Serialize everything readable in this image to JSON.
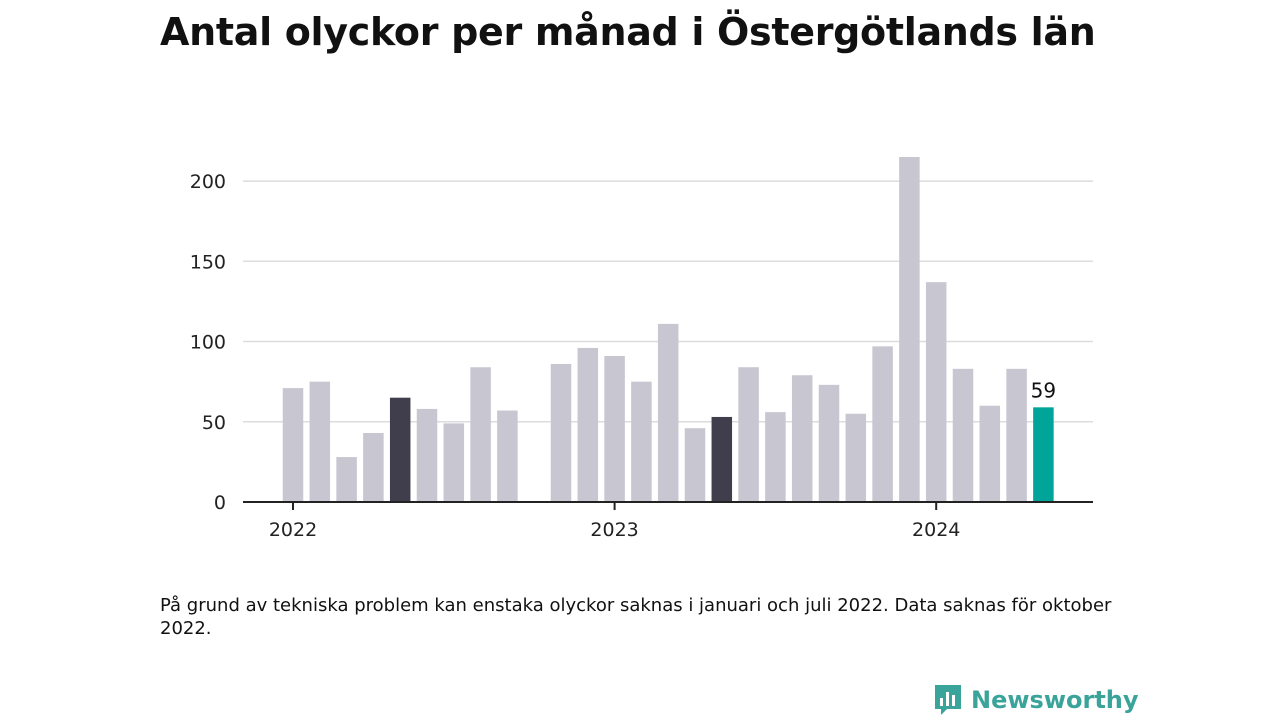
{
  "title": "Antal olyckor per månad i Östergötlands län",
  "note": "På grund av tekniska problem kan enstaka olyckor saknas i januari och juli 2022. Data saknas för oktober 2022.",
  "brand": {
    "name": "Newsworthy",
    "icon": "bar-chart-speech-icon",
    "color": "#3aa39a"
  },
  "colors": {
    "default": "#c8c6d0",
    "highlight": "#403e4c",
    "latest": "#00a499",
    "grid": "#dcdcdc",
    "axis": "#222222"
  },
  "chart_data": {
    "type": "bar",
    "title": "Antal olyckor per månad i Östergötlands län",
    "xlabel": "",
    "ylabel": "",
    "ylim": [
      0,
      215
    ],
    "yticks": [
      0,
      50,
      100,
      150,
      200
    ],
    "xticks": [
      {
        "label": "2022",
        "index": 0
      },
      {
        "label": "2023",
        "index": 12
      },
      {
        "label": "2024",
        "index": 24
      }
    ],
    "grid": true,
    "categories": [
      "2022-01",
      "2022-02",
      "2022-03",
      "2022-04",
      "2022-05",
      "2022-06",
      "2022-07",
      "2022-08",
      "2022-09",
      "2022-10",
      "2022-11",
      "2022-12",
      "2023-01",
      "2023-02",
      "2023-03",
      "2023-04",
      "2023-05",
      "2023-06",
      "2023-07",
      "2023-08",
      "2023-09",
      "2023-10",
      "2023-11",
      "2023-12",
      "2024-01",
      "2024-02",
      "2024-03",
      "2024-04",
      "2024-05"
    ],
    "values": [
      71,
      75,
      28,
      43,
      65,
      58,
      49,
      84,
      57,
      null,
      86,
      96,
      91,
      75,
      111,
      46,
      53,
      84,
      56,
      79,
      73,
      55,
      97,
      215,
      137,
      83,
      60,
      83,
      59
    ],
    "highlight": [
      "2022-05",
      "2023-05"
    ],
    "latest": "2024-05",
    "data_labels": [
      {
        "category": "2024-05",
        "text": "59"
      }
    ]
  }
}
